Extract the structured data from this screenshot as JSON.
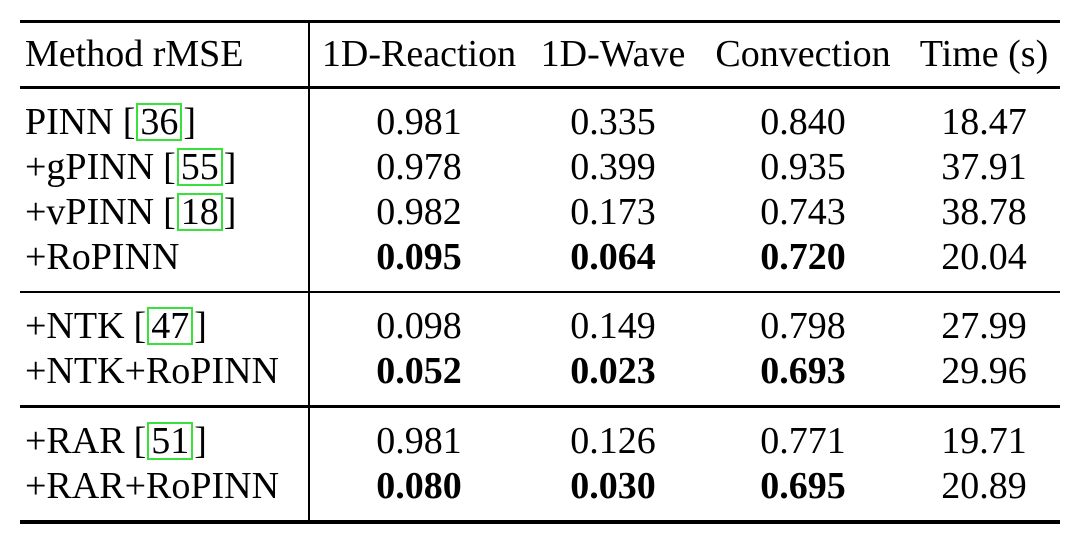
{
  "table": {
    "header": {
      "method_col": "Method rMSE",
      "columns": [
        "1D-Reaction",
        "1D-Wave",
        "Convection",
        "Time (s)"
      ]
    },
    "cite_brackets": {
      "open": "[",
      "close": "]"
    },
    "groups": [
      {
        "rows": [
          {
            "label": "PINN",
            "cite": "36",
            "values": [
              "0.981",
              "0.335",
              "0.840",
              "18.47"
            ],
            "bold": false
          },
          {
            "label": "+gPINN",
            "cite": "55",
            "values": [
              "0.978",
              "0.399",
              "0.935",
              "37.91"
            ],
            "bold": false
          },
          {
            "label": "+vPINN",
            "cite": "18",
            "values": [
              "0.982",
              "0.173",
              "0.743",
              "38.78"
            ],
            "bold": false
          },
          {
            "label": "+RoPINN",
            "values": [
              "0.095",
              "0.064",
              "0.720",
              "20.04"
            ],
            "bold": true
          }
        ]
      },
      {
        "rows": [
          {
            "label": "+NTK",
            "cite": "47",
            "values": [
              "0.098",
              "0.149",
              "0.798",
              "27.99"
            ],
            "bold": false
          },
          {
            "label": "+NTK+RoPINN",
            "values": [
              "0.052",
              "0.023",
              "0.693",
              "29.96"
            ],
            "bold": true
          }
        ]
      },
      {
        "rows": [
          {
            "label": "+RAR",
            "cite": "51",
            "values": [
              "0.981",
              "0.126",
              "0.771",
              "19.71"
            ],
            "bold": false
          },
          {
            "label": "+RAR+RoPINN",
            "values": [
              "0.080",
              "0.030",
              "0.695",
              "20.89"
            ],
            "bold": true
          }
        ]
      }
    ],
    "colors": {
      "citation_box": "#3ae13a",
      "rule": "#000000"
    }
  }
}
